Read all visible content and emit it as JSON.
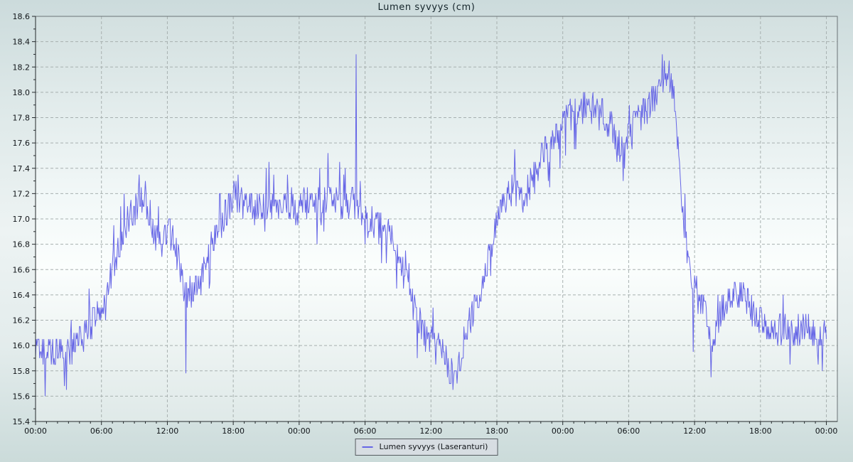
{
  "chart_data": {
    "type": "line",
    "title": "Lumen syvyys (cm)",
    "xlabel": "",
    "ylabel": "",
    "legend": {
      "label": "Lumen syvyys (Laseranturi)",
      "position": "bottom-center"
    },
    "series_color": "#6666e6",
    "grid": {
      "show": true,
      "color": "#a7b0af",
      "dash": "4 3"
    },
    "x": {
      "unit": "time-of-day",
      "hours_total": 72,
      "axis_max_hours": 73,
      "major_tick_hours": 6,
      "minor_tick_hours": 1,
      "tick_labels": [
        "00:00",
        "06:00",
        "12:00",
        "18:00",
        "00:00",
        "06:00",
        "12:00",
        "18:00",
        "00:00",
        "06:00",
        "12:00",
        "18:00",
        "00:00"
      ]
    },
    "y": {
      "min": 15.4,
      "max": 18.6,
      "major_step": 0.2,
      "minor_step": 0.1,
      "unit": "cm",
      "tick_labels": [
        "15.4",
        "15.6",
        "15.8",
        "16.0",
        "16.2",
        "16.4",
        "16.6",
        "16.8",
        "17.0",
        "17.2",
        "17.4",
        "17.6",
        "17.8",
        "18.0",
        "18.2",
        "18.4",
        "18.6"
      ]
    },
    "series": [
      {
        "name": "Lumen syvyys (Laseranturi)",
        "trend_keypoints": [
          [
            0,
            16.0
          ],
          [
            0.5,
            15.95
          ],
          [
            2,
            15.95
          ],
          [
            3.5,
            16.0
          ],
          [
            4.3,
            16.05
          ],
          [
            4.8,
            16.15
          ],
          [
            5.4,
            16.22
          ],
          [
            6,
            16.3
          ],
          [
            6.6,
            16.45
          ],
          [
            7.3,
            16.7
          ],
          [
            8,
            16.9
          ],
          [
            8.6,
            17.02
          ],
          [
            9.2,
            17.12
          ],
          [
            9.9,
            17.18
          ],
          [
            10.4,
            17.02
          ],
          [
            10.9,
            16.85
          ],
          [
            11.6,
            16.83
          ],
          [
            12.2,
            16.9
          ],
          [
            12.7,
            16.78
          ],
          [
            13.3,
            16.55
          ],
          [
            13.9,
            16.42
          ],
          [
            14.8,
            16.45
          ],
          [
            15.5,
            16.6
          ],
          [
            16.3,
            16.9
          ],
          [
            17,
            17.0
          ],
          [
            17.7,
            17.12
          ],
          [
            18.3,
            17.18
          ],
          [
            19,
            17.12
          ],
          [
            20,
            17.08
          ],
          [
            21,
            17.1
          ],
          [
            22,
            17.12
          ],
          [
            23,
            17.1
          ],
          [
            24,
            17.1
          ],
          [
            25,
            17.12
          ],
          [
            26,
            17.1
          ],
          [
            27,
            17.13
          ],
          [
            28,
            17.1
          ],
          [
            29,
            17.15
          ],
          [
            29.6,
            17.02
          ],
          [
            30.3,
            17.0
          ],
          [
            31,
            16.95
          ],
          [
            32,
            16.9
          ],
          [
            32.7,
            16.8
          ],
          [
            33.4,
            16.6
          ],
          [
            34,
            16.45
          ],
          [
            34.7,
            16.25
          ],
          [
            35.3,
            16.1
          ],
          [
            35.9,
            16.02
          ],
          [
            36.6,
            16.0
          ],
          [
            37.2,
            15.95
          ],
          [
            37.8,
            15.8
          ],
          [
            38.2,
            15.72
          ],
          [
            38.7,
            15.95
          ],
          [
            39.3,
            16.15
          ],
          [
            40,
            16.3
          ],
          [
            40.7,
            16.5
          ],
          [
            41.3,
            16.7
          ],
          [
            41.9,
            16.95
          ],
          [
            42.5,
            17.1
          ],
          [
            43,
            17.2
          ],
          [
            43.6,
            17.25
          ],
          [
            44.2,
            17.2
          ],
          [
            44.6,
            17.1
          ],
          [
            45,
            17.3
          ],
          [
            45.6,
            17.4
          ],
          [
            46.2,
            17.5
          ],
          [
            46.9,
            17.6
          ],
          [
            47.5,
            17.68
          ],
          [
            48,
            17.75
          ],
          [
            48.6,
            17.8
          ],
          [
            49.3,
            17.85
          ],
          [
            50,
            17.88
          ],
          [
            50.8,
            17.85
          ],
          [
            51.6,
            17.82
          ],
          [
            52.3,
            17.75
          ],
          [
            52.9,
            17.6
          ],
          [
            53.5,
            17.55
          ],
          [
            54.1,
            17.7
          ],
          [
            54.8,
            17.78
          ],
          [
            55.4,
            17.85
          ],
          [
            56,
            17.92
          ],
          [
            56.6,
            18.02
          ],
          [
            57.1,
            18.12
          ],
          [
            57.7,
            18.16
          ],
          [
            58.1,
            17.95
          ],
          [
            58.5,
            17.6
          ],
          [
            58.9,
            17.1
          ],
          [
            59.3,
            16.75
          ],
          [
            59.8,
            16.5
          ],
          [
            60.3,
            16.4
          ],
          [
            60.9,
            16.3
          ],
          [
            61.4,
            16.05
          ],
          [
            61.9,
            16.05
          ],
          [
            62.4,
            16.25
          ],
          [
            63,
            16.35
          ],
          [
            63.6,
            16.45
          ],
          [
            64.2,
            16.4
          ],
          [
            64.8,
            16.35
          ],
          [
            65.4,
            16.25
          ],
          [
            66,
            16.2
          ],
          [
            66.8,
            16.1
          ],
          [
            68,
            16.15
          ],
          [
            69,
            16.1
          ],
          [
            70,
            16.15
          ],
          [
            71,
            16.1
          ],
          [
            71.7,
            16.05
          ],
          [
            72,
            16.1
          ]
        ],
        "spikes": [
          [
            2.6,
            15.68
          ],
          [
            13.7,
            15.78
          ],
          [
            26.6,
            17.52
          ],
          [
            29.2,
            18.3
          ],
          [
            59.9,
            15.95
          ],
          [
            61.5,
            15.75
          ],
          [
            71.6,
            15.8
          ]
        ],
        "noise": {
          "amplitude": 0.13,
          "spike_chance": 0.06,
          "spike_amplitude": 0.22,
          "quantize": 0.05,
          "samples_per_hour": 16,
          "seed": 97
        }
      }
    ]
  }
}
